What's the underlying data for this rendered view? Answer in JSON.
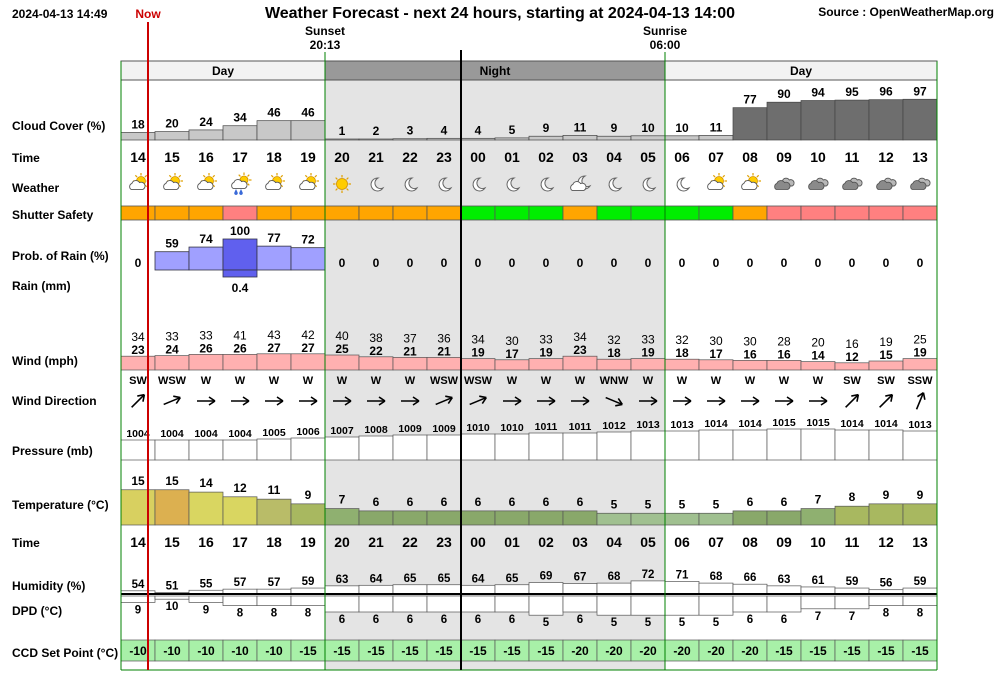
{
  "header": {
    "timestamp": "2024-04-13 14:49",
    "now_label": "Now",
    "title": "Weather Forecast - next 24 hours, starting at 2024-04-13 14:00",
    "source": "Source : OpenWeatherMap.org"
  },
  "sun_events": [
    {
      "label": "Sunset",
      "time": "20:13",
      "hour_index": 6
    },
    {
      "label": "Sunrise",
      "time": "06:00",
      "hour_index": 16
    }
  ],
  "periods": [
    {
      "label": "Day",
      "start": 0,
      "end": 6
    },
    {
      "label": "Night",
      "start": 6,
      "end": 16
    },
    {
      "label": "Day",
      "start": 16,
      "end": 24
    }
  ],
  "labels": {
    "cloud": "Cloud Cover (%)",
    "time": "Time",
    "weather": "Weather",
    "shutter": "Shutter Safety",
    "rain_prob": "Prob. of Rain (%)",
    "rain_mm": "Rain (mm)",
    "wind": "Wind (mph)",
    "wind_dir": "Wind Direction",
    "pressure": "Pressure (mb)",
    "temperature": "Temperature (°C)",
    "time2": "Time",
    "humidity": "Humidity (%)",
    "dpd": "DPD (°C)",
    "ccd": "CCD Set Point (°C)"
  },
  "chart_data": {
    "type": "table",
    "hours": [
      "14",
      "15",
      "16",
      "17",
      "18",
      "19",
      "20",
      "21",
      "22",
      "23",
      "00",
      "01",
      "02",
      "03",
      "04",
      "05",
      "06",
      "07",
      "08",
      "09",
      "10",
      "11",
      "12",
      "13"
    ],
    "cloud_cover": [
      18,
      20,
      24,
      34,
      46,
      46,
      1,
      2,
      3,
      4,
      4,
      5,
      9,
      11,
      9,
      10,
      10,
      11,
      77,
      90,
      94,
      95,
      96,
      97
    ],
    "weather": [
      "partly-cloudy-day",
      "partly-cloudy-day",
      "partly-cloudy-day",
      "rain-shower-day",
      "partly-cloudy-day",
      "partly-cloudy-day",
      "clear-day",
      "clear-night",
      "clear-night",
      "clear-night",
      "clear-night",
      "clear-night",
      "clear-night",
      "partly-cloudy-night",
      "clear-night",
      "clear-night",
      "clear-night",
      "partly-cloudy-day",
      "partly-cloudy-day",
      "overcast",
      "overcast",
      "overcast",
      "overcast",
      "overcast"
    ],
    "shutter_safety": [
      "orange",
      "orange",
      "orange",
      "red",
      "orange",
      "orange",
      "orange",
      "orange",
      "orange",
      "orange",
      "green",
      "green",
      "green",
      "orange",
      "green",
      "green",
      "green",
      "green",
      "orange",
      "red",
      "red",
      "red",
      "red",
      "red"
    ],
    "rain_probability": [
      0,
      59,
      74,
      100,
      77,
      72,
      0,
      0,
      0,
      0,
      0,
      0,
      0,
      0,
      0,
      0,
      0,
      0,
      0,
      0,
      0,
      0,
      0,
      0
    ],
    "rain_mm": [
      null,
      null,
      null,
      0.4,
      null,
      null,
      null,
      null,
      null,
      null,
      null,
      null,
      null,
      null,
      null,
      null,
      null,
      null,
      null,
      null,
      null,
      null,
      null,
      null
    ],
    "wind_gust": [
      34,
      33,
      33,
      41,
      43,
      42,
      40,
      38,
      37,
      36,
      34,
      30,
      33,
      34,
      32,
      33,
      32,
      30,
      30,
      28,
      20,
      16,
      19,
      25
    ],
    "wind_speed": [
      23,
      24,
      26,
      26,
      27,
      27,
      25,
      22,
      21,
      21,
      19,
      17,
      19,
      23,
      18,
      19,
      18,
      17,
      16,
      16,
      14,
      12,
      15,
      19
    ],
    "wind_direction": [
      "SW",
      "WSW",
      "W",
      "W",
      "W",
      "W",
      "W",
      "W",
      "W",
      "WSW",
      "WSW",
      "W",
      "W",
      "W",
      "WNW",
      "W",
      "W",
      "W",
      "W",
      "W",
      "W",
      "SW",
      "SW",
      "SSW"
    ],
    "pressure": [
      1004,
      1004,
      1004,
      1004,
      1005,
      1006,
      1007,
      1008,
      1009,
      1009,
      1010,
      1010,
      1011,
      1011,
      1012,
      1013,
      1013,
      1014,
      1014,
      1015,
      1015,
      1014,
      1014,
      1013
    ],
    "temperature": [
      15,
      15,
      14,
      12,
      11,
      9,
      7,
      6,
      6,
      6,
      6,
      6,
      6,
      6,
      5,
      5,
      5,
      5,
      6,
      6,
      7,
      8,
      9,
      9
    ],
    "humidity": [
      54,
      51,
      55,
      57,
      57,
      59,
      63,
      64,
      65,
      65,
      64,
      65,
      69,
      67,
      68,
      72,
      71,
      68,
      66,
      63,
      61,
      59,
      56,
      59
    ],
    "dpd": [
      9,
      10,
      9,
      8,
      8,
      8,
      6,
      6,
      6,
      6,
      6,
      6,
      5,
      6,
      5,
      5,
      5,
      5,
      6,
      6,
      7,
      7,
      8,
      8
    ],
    "ccd_set_point": [
      -10,
      -10,
      -10,
      -10,
      -10,
      -15,
      -15,
      -15,
      -15,
      -15,
      -15,
      -15,
      -15,
      -20,
      -20,
      -20,
      -20,
      -20,
      -20,
      -15,
      -15,
      -15,
      -15,
      -15
    ],
    "colors": {
      "night_shade": "#e4e4e4",
      "night_bar": "#999999",
      "now_line": "#cc0000",
      "cloud_bar": "#c8c8c8",
      "cloud_bar_dark": "#6e6e6e",
      "shutter_orange": "#ffa500",
      "shutter_red": "#ff8080",
      "shutter_green": "#00ee00",
      "rain_bar": "#a0a0ff",
      "rain_bar_max": "#6060ee",
      "wind_bar": "#ffb0b0",
      "ccd_bar": "#a8f0a8",
      "frame": "#008000"
    }
  }
}
